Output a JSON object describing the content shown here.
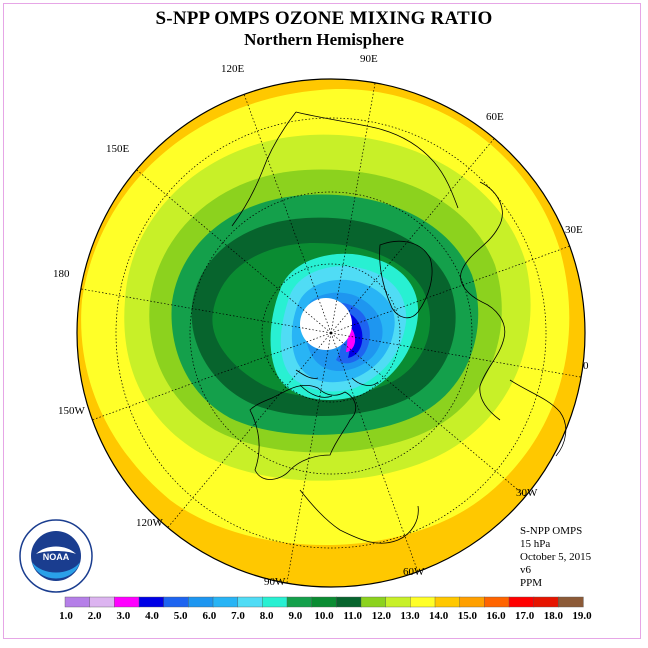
{
  "header": {
    "title": "S-NPP OMPS OZONE MIXING RATIO",
    "subtitle": "Northern Hemisphere"
  },
  "longitude_labels": [
    "90E",
    "60E",
    "30E",
    "0",
    "30W",
    "60W",
    "90W",
    "120W",
    "150W",
    "180",
    "150E",
    "120E"
  ],
  "info": {
    "instrument": "S-NPP OMPS",
    "level": "15 hPa",
    "date": "October 5, 2015",
    "version": "v6",
    "units": "PPM"
  },
  "colorbar": {
    "labels": [
      "1.0",
      "2.0",
      "3.0",
      "4.0",
      "5.0",
      "6.0",
      "7.0",
      "8.0",
      "9.0",
      "10.0",
      "11.0",
      "12.0",
      "13.0",
      "14.0",
      "15.0",
      "16.0",
      "17.0",
      "18.0",
      "19.0"
    ],
    "colors": [
      "#b57fe8",
      "#dcb4f0",
      "#ff00ff",
      "#0000e6",
      "#1e64f0",
      "#1e96f0",
      "#28b4f5",
      "#50dcf5",
      "#28f0d2",
      "#14a04b",
      "#0a8c32",
      "#07642d",
      "#8cd21e",
      "#c8f028",
      "#ffff28",
      "#ffc800",
      "#ffa000",
      "#ff6400",
      "#ff0000",
      "#e61400",
      "#8c5a37"
    ]
  },
  "logo": {
    "text": "NOAA",
    "ring_text": "NATIONAL OCEANIC AND ATMOSPHERIC ADMINISTRATION · U.S. DEPARTMENT OF COMMERCE"
  },
  "colors": {
    "frame": "#e6a6e6",
    "pole_hole": "#ffffff"
  }
}
